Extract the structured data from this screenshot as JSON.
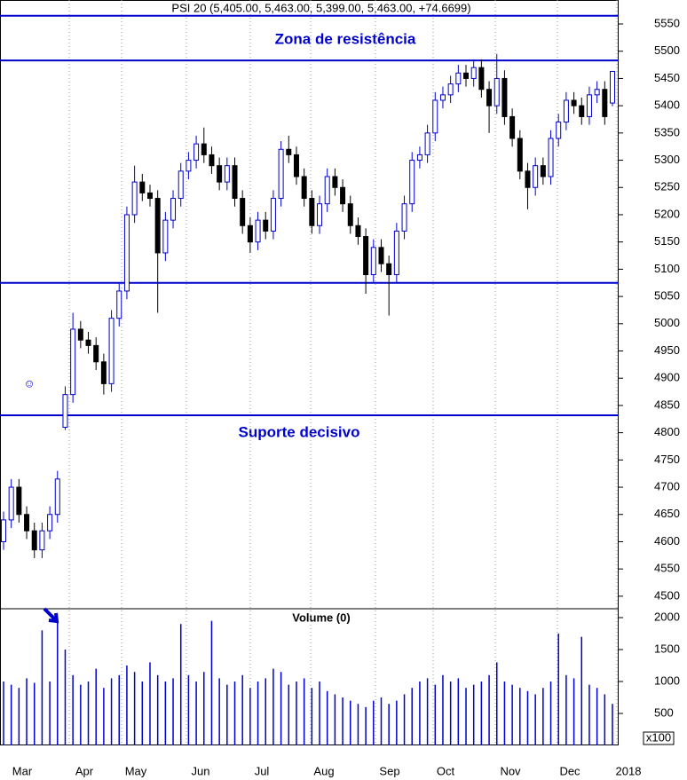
{
  "chart_data": [
    {
      "type": "candlestick",
      "title": "PSI 20 (5,405.00, 5,463.00, 5,399.00, 5,463.00, +74.6699)",
      "annotations": [
        "Zona de resistência",
        "Suporte decisivo"
      ],
      "marker": "☺",
      "x_labels": [
        "Mar",
        "Apr",
        "May",
        "Jun",
        "Jul",
        "Aug",
        "Sep",
        "Oct",
        "Nov",
        "Dec",
        "2018"
      ],
      "up_color": "#0000cc",
      "down_color": "#000000",
      "line_color": "#0000cc",
      "hlines": [
        5565,
        5483,
        5075,
        4832
      ],
      "ylim": [
        4477,
        5594
      ],
      "yticks": [
        4500,
        4550,
        4600,
        4650,
        4700,
        4750,
        4800,
        4850,
        4900,
        4950,
        5000,
        5050,
        5100,
        5150,
        5200,
        5250,
        5300,
        5350,
        5400,
        5450,
        5500,
        5550
      ],
      "open": [
        4600,
        4640,
        4700,
        4650,
        4620,
        4585,
        4620,
        4650,
        4810,
        4870,
        4990,
        4970,
        4960,
        4930,
        4890,
        5010,
        5060,
        5200,
        5260,
        5240,
        5230,
        5130,
        5190,
        5230,
        5280,
        5300,
        5330,
        5310,
        5290,
        5260,
        5290,
        5230,
        5180,
        5150,
        5190,
        5170,
        5230,
        5320,
        5310,
        5270,
        5230,
        5180,
        5220,
        5270,
        5250,
        5220,
        5180,
        5160,
        5090,
        5140,
        5110,
        5090,
        5170,
        5220,
        5300,
        5310,
        5350,
        5410,
        5420,
        5440,
        5460,
        5450,
        5470,
        5430,
        5400,
        5450,
        5380,
        5340,
        5280,
        5250,
        5290,
        5270,
        5340,
        5370,
        5410,
        5400,
        5380,
        5420,
        5430,
        5405
      ],
      "high": [
        4655,
        4715,
        4715,
        4665,
        4635,
        4635,
        4665,
        4730,
        4885,
        5020,
        5005,
        4985,
        4975,
        4945,
        5025,
        5075,
        5215,
        5290,
        5275,
        5255,
        5245,
        5205,
        5245,
        5295,
        5315,
        5345,
        5360,
        5325,
        5305,
        5305,
        5305,
        5245,
        5195,
        5205,
        5205,
        5245,
        5335,
        5345,
        5325,
        5285,
        5245,
        5235,
        5285,
        5285,
        5265,
        5235,
        5195,
        5175,
        5155,
        5155,
        5125,
        5185,
        5235,
        5315,
        5325,
        5365,
        5425,
        5435,
        5455,
        5475,
        5475,
        5485,
        5485,
        5445,
        5495,
        5465,
        5395,
        5355,
        5295,
        5305,
        5305,
        5355,
        5385,
        5425,
        5425,
        5415,
        5435,
        5445,
        5445,
        5463
      ],
      "low": [
        4585,
        4625,
        4635,
        4605,
        4570,
        4570,
        4605,
        4635,
        4805,
        4855,
        4955,
        4945,
        4915,
        4870,
        4875,
        4995,
        5045,
        5185,
        5225,
        5215,
        5020,
        5115,
        5175,
        5215,
        5265,
        5285,
        5295,
        5275,
        5245,
        5245,
        5215,
        5165,
        5130,
        5135,
        5155,
        5155,
        5215,
        5295,
        5255,
        5215,
        5165,
        5165,
        5205,
        5235,
        5205,
        5165,
        5145,
        5055,
        5075,
        5095,
        5015,
        5075,
        5155,
        5205,
        5285,
        5295,
        5335,
        5395,
        5405,
        5425,
        5435,
        5435,
        5415,
        5350,
        5385,
        5365,
        5325,
        5265,
        5210,
        5235,
        5255,
        5255,
        5325,
        5355,
        5385,
        5365,
        5365,
        5405,
        5365,
        5399
      ],
      "close": [
        4640,
        4700,
        4650,
        4620,
        4585,
        4620,
        4650,
        4715,
        4870,
        4990,
        4970,
        4960,
        4930,
        4890,
        5010,
        5060,
        5200,
        5260,
        5240,
        5230,
        5130,
        5190,
        5230,
        5280,
        5300,
        5330,
        5310,
        5290,
        5260,
        5290,
        5230,
        5180,
        5150,
        5190,
        5170,
        5230,
        5320,
        5310,
        5270,
        5230,
        5180,
        5220,
        5270,
        5250,
        5220,
        5180,
        5160,
        5090,
        5140,
        5110,
        5090,
        5170,
        5220,
        5300,
        5310,
        5350,
        5410,
        5420,
        5440,
        5460,
        5450,
        5470,
        5430,
        5400,
        5450,
        5380,
        5340,
        5280,
        5250,
        5290,
        5270,
        5340,
        5370,
        5410,
        5400,
        5380,
        5420,
        5430,
        5380,
        5463
      ]
    },
    {
      "type": "volume",
      "title": "Volume (0)",
      "unit": "x100",
      "color": "#0000cc",
      "ylim": [
        0,
        2139
      ],
      "yticks": [
        500,
        1000,
        1500,
        2000
      ],
      "values": [
        1000,
        950,
        900,
        1050,
        980,
        1800,
        1000,
        1950,
        1500,
        1100,
        950,
        1000,
        1200,
        900,
        1050,
        1100,
        1250,
        1150,
        1000,
        1300,
        1100,
        1000,
        1050,
        1900,
        1100,
        1000,
        1150,
        1950,
        1050,
        950,
        1000,
        1100,
        900,
        1000,
        1050,
        1200,
        1150,
        950,
        1000,
        1050,
        900,
        1000,
        850,
        800,
        750,
        700,
        650,
        600,
        700,
        750,
        650,
        700,
        800,
        900,
        1000,
        1050,
        950,
        1100,
        1000,
        1050,
        900,
        950,
        1000,
        1100,
        1300,
        1000,
        950,
        900,
        850,
        800,
        900,
        1000,
        1750,
        1100,
        1050,
        1700,
        950,
        900,
        800,
        650
      ]
    }
  ]
}
